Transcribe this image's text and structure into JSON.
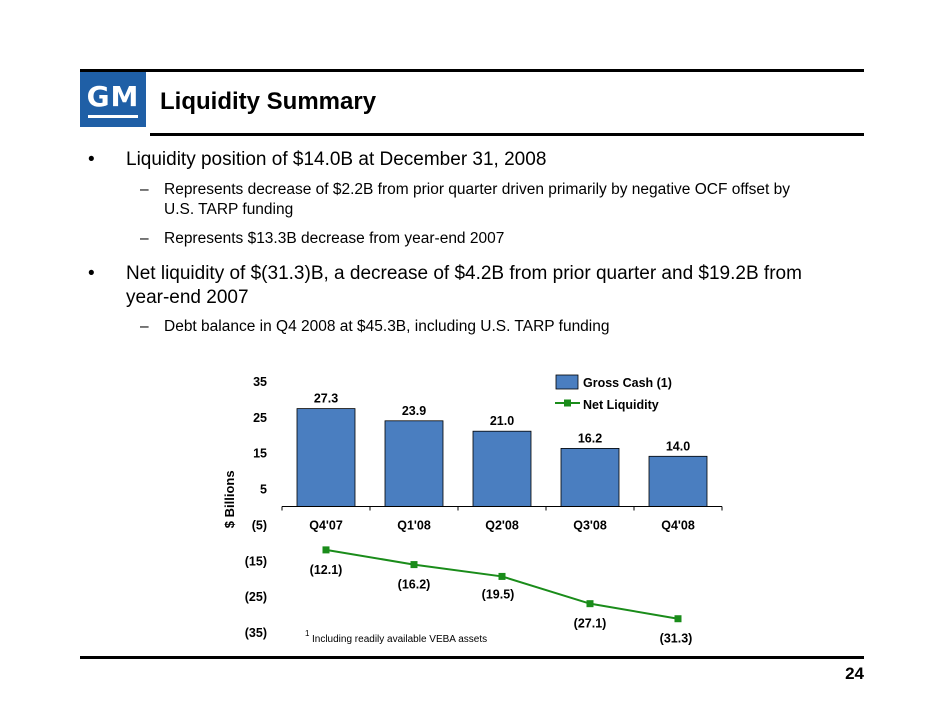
{
  "slide": {
    "logo_text": "GM",
    "title": "Liquidity Summary",
    "page_number": "24"
  },
  "bullets": [
    {
      "text": "Liquidity position of $14.0B at December 31, 2008",
      "subs": [
        "Represents decrease of $2.2B from prior quarter driven primarily by negative OCF offset by U.S. TARP funding",
        "Represents $13.3B decrease from year-end 2007"
      ]
    },
    {
      "text": "Net liquidity of $(31.3)B, a decrease of $4.2B from prior quarter and $19.2B from year-end 2007",
      "subs": [
        "Debt balance in Q4 2008 at $45.3B, including U.S. TARP funding"
      ]
    }
  ],
  "bullet_marker": "•",
  "sub_marker": "–",
  "chart_data": {
    "type": "bar",
    "categories": [
      "Q4'07",
      "Q1'08",
      "Q2'08",
      "Q3'08",
      "Q4'08"
    ],
    "ylabel": "$ Billions",
    "ylim": [
      -35,
      35
    ],
    "yticks": [
      35,
      25,
      15,
      5,
      -5,
      -15,
      -25,
      -35
    ],
    "ytick_labels": [
      "35",
      "25",
      "15",
      "5",
      "(5)",
      "(15)",
      "(25)",
      "(35)"
    ],
    "series": [
      {
        "name": "Gross Cash (1)",
        "type": "bar",
        "color": "#4a7ec0",
        "values": [
          27.3,
          23.9,
          21.0,
          16.2,
          14.0
        ],
        "labels": [
          "27.3",
          "23.9",
          "21.0",
          "16.2",
          "14.0"
        ]
      },
      {
        "name": "Net Liquidity",
        "type": "line",
        "color": "#1a8c1a",
        "values": [
          -12.1,
          -16.2,
          -19.5,
          -27.1,
          -31.3
        ],
        "labels": [
          "(12.1)",
          "(16.2)",
          "(19.5)",
          "(27.1)",
          "(31.3)"
        ]
      }
    ],
    "legend_position": "top-right",
    "grid": false,
    "footnote_marker": "1",
    "footnote": "Including readily available VEBA assets"
  }
}
